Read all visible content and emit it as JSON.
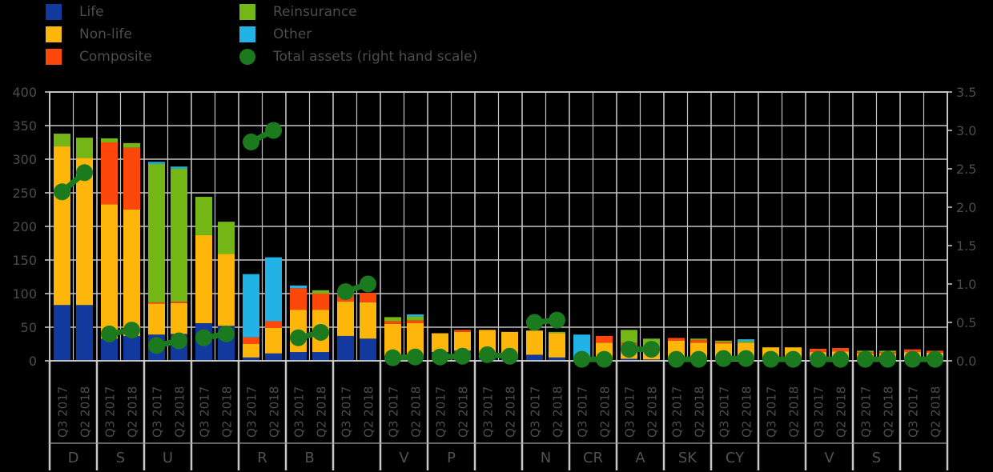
{
  "chart_data": {
    "type": "bar",
    "stacked": true,
    "title": "",
    "legend_position": "top",
    "grid": true,
    "colors": {
      "life": "#11399e",
      "non_life": "#ffb60a",
      "composite": "#fe480b",
      "reinsurance": "#74b616",
      "other": "#22b3e6",
      "total_assets": "#1c7a1e",
      "gridline": "#c2c2c2",
      "axis_text": "#4c4c4c",
      "background": "#000000"
    },
    "legend": {
      "series": [
        {
          "key": "life",
          "name": "Life",
          "marker": "square"
        },
        {
          "key": "non_life",
          "name": "Non-life",
          "marker": "square"
        },
        {
          "key": "composite",
          "name": "Composite",
          "marker": "square"
        },
        {
          "key": "reinsurance",
          "name": "Reinsurance",
          "marker": "square"
        },
        {
          "key": "other",
          "name": "Other",
          "marker": "square"
        },
        {
          "key": "total_assets",
          "name": "Total assets (right hand scale)",
          "marker": "dot"
        }
      ]
    },
    "stack_order": [
      "life",
      "non_life",
      "composite",
      "reinsurance",
      "other"
    ],
    "x_tick_labels": [
      "Q3 2017",
      "Q2 2018"
    ],
    "left_axis": {
      "max": 400,
      "tick_labels": [
        "400",
        "350",
        "300",
        "250",
        "200",
        "150",
        "100",
        "50",
        "0"
      ]
    },
    "right_axis": {
      "max": 3.5,
      "tick_labels": [
        "3.5",
        "3.0",
        "2.5",
        "2.0",
        "1.5",
        "1.0",
        "0.5",
        "0.0"
      ]
    },
    "groups": [
      {
        "country": "D",
        "bars": [
          {
            "life": 83,
            "non_life": 236,
            "composite": 0,
            "reinsurance": 19,
            "other": 0
          },
          {
            "life": 83,
            "non_life": 219,
            "composite": 0,
            "reinsurance": 30,
            "other": 0
          }
        ],
        "total_assets": [
          2.2,
          2.45
        ]
      },
      {
        "country": "S",
        "bars": [
          {
            "life": 33,
            "non_life": 200,
            "composite": 92,
            "reinsurance": 6,
            "other": 0
          },
          {
            "life": 37,
            "non_life": 188,
            "composite": 92,
            "reinsurance": 7,
            "other": 0
          }
        ],
        "total_assets": [
          0.35,
          0.4
        ]
      },
      {
        "country": "U",
        "bars": [
          {
            "life": 39,
            "non_life": 46,
            "composite": 2,
            "reinsurance": 206,
            "other": 3
          },
          {
            "life": 40,
            "non_life": 46,
            "composite": 2,
            "reinsurance": 198,
            "other": 3
          }
        ],
        "total_assets": [
          0.2,
          0.26
        ]
      },
      {
        "country": "",
        "bars": [
          {
            "life": 56,
            "non_life": 131,
            "composite": 0,
            "reinsurance": 57,
            "other": 0
          },
          {
            "life": 52,
            "non_life": 107,
            "composite": 0,
            "reinsurance": 48,
            "other": 0
          }
        ],
        "total_assets": [
          0.3,
          0.35
        ]
      },
      {
        "country": "R",
        "bars": [
          {
            "life": 5,
            "non_life": 20,
            "composite": 10,
            "reinsurance": 0,
            "other": 94
          },
          {
            "life": 11,
            "non_life": 38,
            "composite": 10,
            "reinsurance": 0,
            "other": 95
          }
        ],
        "total_assets": [
          2.85,
          3.0
        ]
      },
      {
        "country": "B",
        "bars": [
          {
            "life": 13,
            "non_life": 63,
            "composite": 32,
            "reinsurance": 0,
            "other": 4
          },
          {
            "life": 13,
            "non_life": 63,
            "composite": 24,
            "reinsurance": 5,
            "other": 0
          }
        ],
        "total_assets": [
          0.3,
          0.37
        ]
      },
      {
        "country": "",
        "bars": [
          {
            "life": 37,
            "non_life": 51,
            "composite": 11,
            "reinsurance": 0,
            "other": 0
          },
          {
            "life": 33,
            "non_life": 54,
            "composite": 14,
            "reinsurance": 0,
            "other": 0
          }
        ],
        "total_assets": [
          0.9,
          1.0
        ]
      },
      {
        "country": "V",
        "bars": [
          {
            "life": 7,
            "non_life": 48,
            "composite": 4,
            "reinsurance": 6,
            "other": 0
          },
          {
            "life": 8,
            "non_life": 48,
            "composite": 4,
            "reinsurance": 6,
            "other": 3
          }
        ],
        "total_assets": [
          0.04,
          0.05
        ]
      },
      {
        "country": "P",
        "bars": [
          {
            "life": 13,
            "non_life": 28,
            "composite": 0,
            "reinsurance": 0,
            "other": 0
          },
          {
            "life": 15,
            "non_life": 28,
            "composite": 3,
            "reinsurance": 0,
            "other": 0
          }
        ],
        "total_assets": [
          0.05,
          0.06
        ]
      },
      {
        "country": "",
        "bars": [
          {
            "life": 5,
            "non_life": 41,
            "composite": 0,
            "reinsurance": 0,
            "other": 0
          },
          {
            "life": 5,
            "non_life": 38,
            "composite": 0,
            "reinsurance": 0,
            "other": 0
          }
        ],
        "total_assets": [
          0.08,
          0.06
        ]
      },
      {
        "country": "N",
        "bars": [
          {
            "life": 9,
            "non_life": 36,
            "composite": 0,
            "reinsurance": 0,
            "other": 0
          },
          {
            "life": 5,
            "non_life": 36,
            "composite": 0,
            "reinsurance": 2,
            "other": 0
          }
        ],
        "total_assets": [
          0.5,
          0.53
        ]
      },
      {
        "country": "CR",
        "bars": [
          {
            "life": 1,
            "non_life": 2,
            "composite": 0,
            "reinsurance": 0,
            "other": 36
          },
          {
            "life": 2,
            "non_life": 25,
            "composite": 10,
            "reinsurance": 0,
            "other": 0
          }
        ],
        "total_assets": [
          0.02,
          0.02
        ]
      },
      {
        "country": "A",
        "bars": [
          {
            "life": 3,
            "non_life": 18,
            "composite": 6,
            "reinsurance": 19,
            "other": 0
          },
          {
            "life": 2,
            "non_life": 18,
            "composite": 2,
            "reinsurance": 11,
            "other": 0
          }
        ],
        "total_assets": [
          0.15,
          0.15
        ]
      },
      {
        "country": "SK",
        "bars": [
          {
            "life": 3,
            "non_life": 27,
            "composite": 4,
            "reinsurance": 0,
            "other": 0
          },
          {
            "life": 2,
            "non_life": 25,
            "composite": 4,
            "reinsurance": 2,
            "other": 0
          }
        ],
        "total_assets": [
          0.02,
          0.02
        ]
      },
      {
        "country": "CY",
        "bars": [
          {
            "life": 2,
            "non_life": 24,
            "composite": 2,
            "reinsurance": 2,
            "other": 0
          },
          {
            "life": 2,
            "non_life": 25,
            "composite": 0,
            "reinsurance": 2,
            "other": 3
          }
        ],
        "total_assets": [
          0.03,
          0.03
        ]
      },
      {
        "country": "",
        "bars": [
          {
            "life": 2,
            "non_life": 18,
            "composite": 0,
            "reinsurance": 0,
            "other": 0
          },
          {
            "life": 2,
            "non_life": 18,
            "composite": 0,
            "reinsurance": 0,
            "other": 0
          }
        ],
        "total_assets": [
          0.02,
          0.02
        ]
      },
      {
        "country": "V",
        "bars": [
          {
            "life": 1,
            "non_life": 12,
            "composite": 5,
            "reinsurance": 0,
            "other": 0
          },
          {
            "life": 1,
            "non_life": 13,
            "composite": 5,
            "reinsurance": 0,
            "other": 0
          }
        ],
        "total_assets": [
          0.02,
          0.02
        ]
      },
      {
        "country": "S",
        "bars": [
          {
            "life": 1,
            "non_life": 10,
            "composite": 2,
            "reinsurance": 2,
            "other": 0
          },
          {
            "life": 1,
            "non_life": 10,
            "composite": 2,
            "reinsurance": 2,
            "other": 0
          }
        ],
        "total_assets": [
          0.02,
          0.02
        ]
      },
      {
        "country": "",
        "bars": [
          {
            "life": 1,
            "non_life": 12,
            "composite": 4,
            "reinsurance": 0,
            "other": 0
          },
          {
            "life": 1,
            "non_life": 11,
            "composite": 3,
            "reinsurance": 0,
            "other": 0
          }
        ],
        "total_assets": [
          0.02,
          0.02
        ]
      }
    ]
  }
}
